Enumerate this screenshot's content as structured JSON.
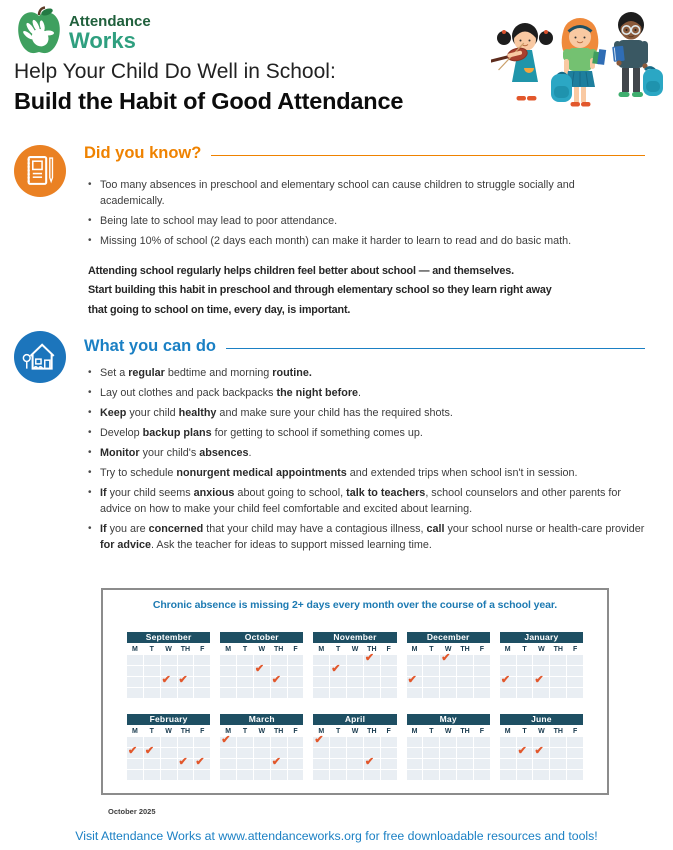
{
  "logo": {
    "line1": "Attendance",
    "line2": "Works"
  },
  "title": {
    "line1": "Help Your Child Do Well in School:",
    "line2": "Build the Habit of Good Attendance"
  },
  "did_you_know": {
    "heading": "Did you know?",
    "bullets": [
      [
        {
          "t": "Too many absences in preschool and elementary school can cause children to struggle socially and academically."
        }
      ],
      [
        {
          "t": "Being late to school may lead to poor attendance."
        }
      ],
      [
        {
          "t": "Missing 10% of school (2 days each month) can make it harder to learn to read and do basic math."
        }
      ]
    ],
    "emphasis_lines": [
      "Attending school regularly helps children feel better about school — and themselves.",
      "Start building this habit in preschool and through elementary school so they learn right away",
      "that going to school on time, every day, is important."
    ]
  },
  "what_you_can_do": {
    "heading": "What you can do",
    "bullets": [
      [
        {
          "t": "Set a "
        },
        {
          "t": "regular",
          "b": true
        },
        {
          "t": " bedtime and morning "
        },
        {
          "t": "routine.",
          "b": true
        }
      ],
      [
        {
          "t": "Lay out clothes and pack backpacks "
        },
        {
          "t": "the night before",
          "b": true
        },
        {
          "t": "."
        }
      ],
      [
        {
          "t": "Keep",
          "b": true
        },
        {
          "t": " your child "
        },
        {
          "t": "healthy",
          "b": true
        },
        {
          "t": " and make sure your child has the required shots."
        }
      ],
      [
        {
          "t": "Develop "
        },
        {
          "t": "backup plans",
          "b": true
        },
        {
          "t": " for getting to school if something comes up."
        }
      ],
      [
        {
          "t": "Monitor",
          "b": true
        },
        {
          "t": " your child's "
        },
        {
          "t": "absences",
          "b": true
        },
        {
          "t": "."
        }
      ],
      [
        {
          "t": "Try to schedule "
        },
        {
          "t": "nonurgent medical appointments",
          "b": true
        },
        {
          "t": " and extended trips when school isn't in session."
        }
      ],
      [
        {
          "t": "If",
          "b": true
        },
        {
          "t": " your child seems "
        },
        {
          "t": "anxious",
          "b": true
        },
        {
          "t": " about going to school, "
        },
        {
          "t": "talk to teachers",
          "b": true
        },
        {
          "t": ", school counselors and other parents for advice on how to make your child feel comfortable and excited about learning."
        }
      ],
      [
        {
          "t": "If",
          "b": true
        },
        {
          "t": " you are "
        },
        {
          "t": "concerned",
          "b": true
        },
        {
          "t": " that your child may have a contagious illness, "
        },
        {
          "t": "call",
          "b": true
        },
        {
          "t": " your school nurse or health-care provider "
        },
        {
          "t": "for advice",
          "b": true
        },
        {
          "t": ". Ask the teacher for ideas to support missed learning time."
        }
      ]
    ]
  },
  "calendar": {
    "title": "Chronic absence is missing 2+ days every month over the course of a school year.",
    "day_headers": [
      "M",
      "T",
      "W",
      "TH",
      "F"
    ],
    "week_rows": 4,
    "check_glyph": "✔",
    "months": [
      {
        "name": "September",
        "checks": [
          [
            2,
            2
          ],
          [
            2,
            3
          ]
        ]
      },
      {
        "name": "October",
        "checks": [
          [
            1,
            2
          ],
          [
            2,
            3
          ]
        ]
      },
      {
        "name": "November",
        "checks": [
          [
            0,
            3
          ],
          [
            1,
            1
          ]
        ]
      },
      {
        "name": "December",
        "checks": [
          [
            0,
            2
          ],
          [
            2,
            0
          ]
        ]
      },
      {
        "name": "January",
        "checks": [
          [
            2,
            0
          ],
          [
            2,
            2
          ]
        ]
      },
      {
        "name": "February",
        "checks": [
          [
            1,
            0
          ],
          [
            1,
            1
          ],
          [
            2,
            3
          ],
          [
            2,
            4
          ]
        ]
      },
      {
        "name": "March",
        "checks": [
          [
            0,
            0
          ],
          [
            2,
            3
          ]
        ]
      },
      {
        "name": "April",
        "checks": [
          [
            0,
            0
          ],
          [
            2,
            3
          ]
        ]
      },
      {
        "name": "May",
        "checks": []
      },
      {
        "name": "June",
        "checks": [
          [
            1,
            1
          ],
          [
            1,
            2
          ]
        ]
      }
    ]
  },
  "footnote": "October 2025",
  "footer": {
    "segments": [
      {
        "t": "Visit Attendance Works at "
      },
      {
        "t": "www.attendanceworks.org",
        "link": true
      },
      {
        "t": " for free downloadable resources and tools!"
      }
    ]
  },
  "icons": {
    "logo": "apple-hand-icon",
    "did_you_know": "notebook-pencil-icon",
    "what_you_can_do": "house-icon",
    "calendar_mark": "checkmark-icon"
  },
  "colors": {
    "orange_accent": "#ea8123",
    "orange_heading": "#ef8200",
    "blue_accent": "#1c75bc",
    "blue_heading": "#1b80c4",
    "calendar_header": "#1e4f63",
    "calendar_cell": "#e9eef3",
    "check_mark": "#e2572b",
    "box_title_blue": "#1d7ab2",
    "logo_dark_green": "#20603c",
    "logo_teal_green": "#2f9f7f"
  }
}
